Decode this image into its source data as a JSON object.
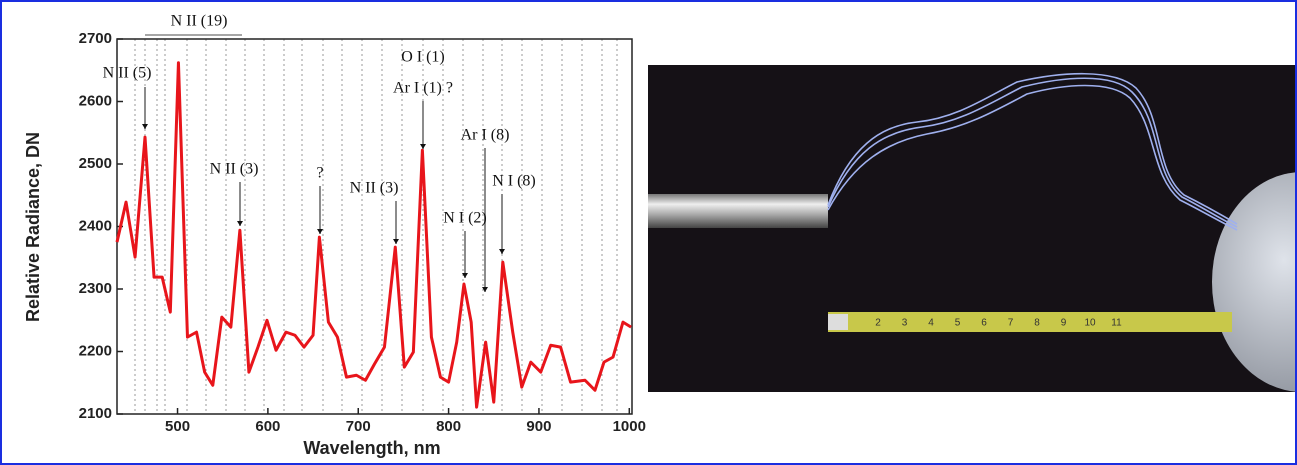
{
  "chart_data": {
    "type": "line",
    "x_label": "Wavelength, nm",
    "y_label": "Relative Radiance, DN",
    "x": [
      433,
      443,
      453,
      464,
      474,
      483,
      492,
      501,
      511,
      521,
      530,
      539,
      549,
      559,
      569,
      579,
      589,
      599,
      609,
      620,
      630,
      640,
      650,
      657,
      667,
      677,
      687,
      698,
      708,
      718,
      729,
      741,
      751,
      761,
      771,
      781,
      791,
      800,
      809,
      817,
      825,
      831,
      841,
      850,
      860,
      871,
      881,
      891,
      902,
      913,
      924,
      935,
      951,
      962,
      972,
      982,
      993,
      1002
    ],
    "series": [
      {
        "color": "#e8151b",
        "values": [
          2375,
          2439,
          2351,
          2543,
          2319,
          2319,
          2263,
          2662,
          2223,
          2231,
          2167,
          2146,
          2255,
          2239,
          2394,
          2167,
          2207,
          2250,
          2202,
          2231,
          2226,
          2207,
          2226,
          2383,
          2247,
          2223,
          2159,
          2162,
          2154,
          2180,
          2207,
          2367,
          2175,
          2199,
          2522,
          2223,
          2159,
          2151,
          2215,
          2308,
          2247,
          2111,
          2215,
          2119,
          2343,
          2231,
          2143,
          2183,
          2167,
          2210,
          2207,
          2151,
          2154,
          2138,
          2183,
          2191,
          2247,
          2239
        ]
      }
    ],
    "xlim": [
      433,
      1003
    ],
    "ylim": [
      2100,
      2700
    ],
    "xticks": [
      500,
      600,
      700,
      800,
      900,
      1000
    ],
    "yticks": [
      2100,
      2200,
      2300,
      2400,
      2500,
      2600,
      2700
    ],
    "annotations": [
      "N II (19)",
      "N II (5)",
      "N II (3)",
      "?",
      "N II (3)",
      "O I (1)",
      "Ar I (1) ?",
      "Ar I (8)",
      "N I (2)",
      "N I (8)"
    ]
  },
  "photo": {
    "tape_labels": [
      "2",
      "3",
      "4",
      "5",
      "6",
      "7",
      "8",
      "9",
      "10",
      "11"
    ]
  }
}
